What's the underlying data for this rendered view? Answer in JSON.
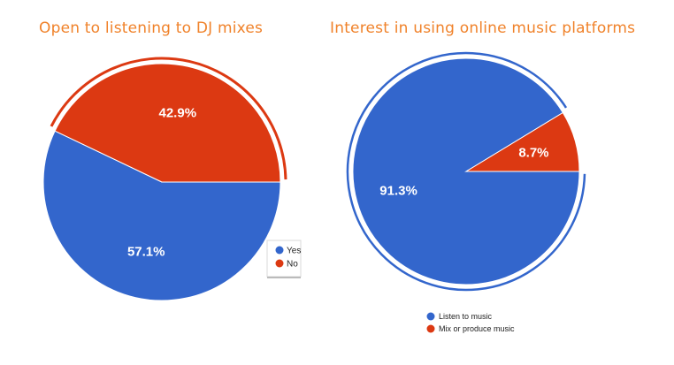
{
  "chart_data": [
    {
      "type": "pie",
      "title": "Open to listening to DJ mixes",
      "categories": [
        "Yes",
        "No"
      ],
      "values": [
        57.1,
        42.9
      ],
      "data_labels": [
        "57.1%",
        "42.9%"
      ],
      "colors": [
        "#3366cc",
        "#dc3912"
      ],
      "exploded": "No",
      "legend": "bottom-right"
    },
    {
      "type": "pie",
      "title": "Interest in using online music platforms",
      "categories": [
        "Listen to music",
        "Mix or produce music"
      ],
      "values": [
        91.3,
        8.7
      ],
      "data_labels": [
        "91.3%",
        "8.7%"
      ],
      "colors": [
        "#3366cc",
        "#dc3912"
      ],
      "exploded": "Listen to music",
      "legend": "bottom"
    }
  ]
}
